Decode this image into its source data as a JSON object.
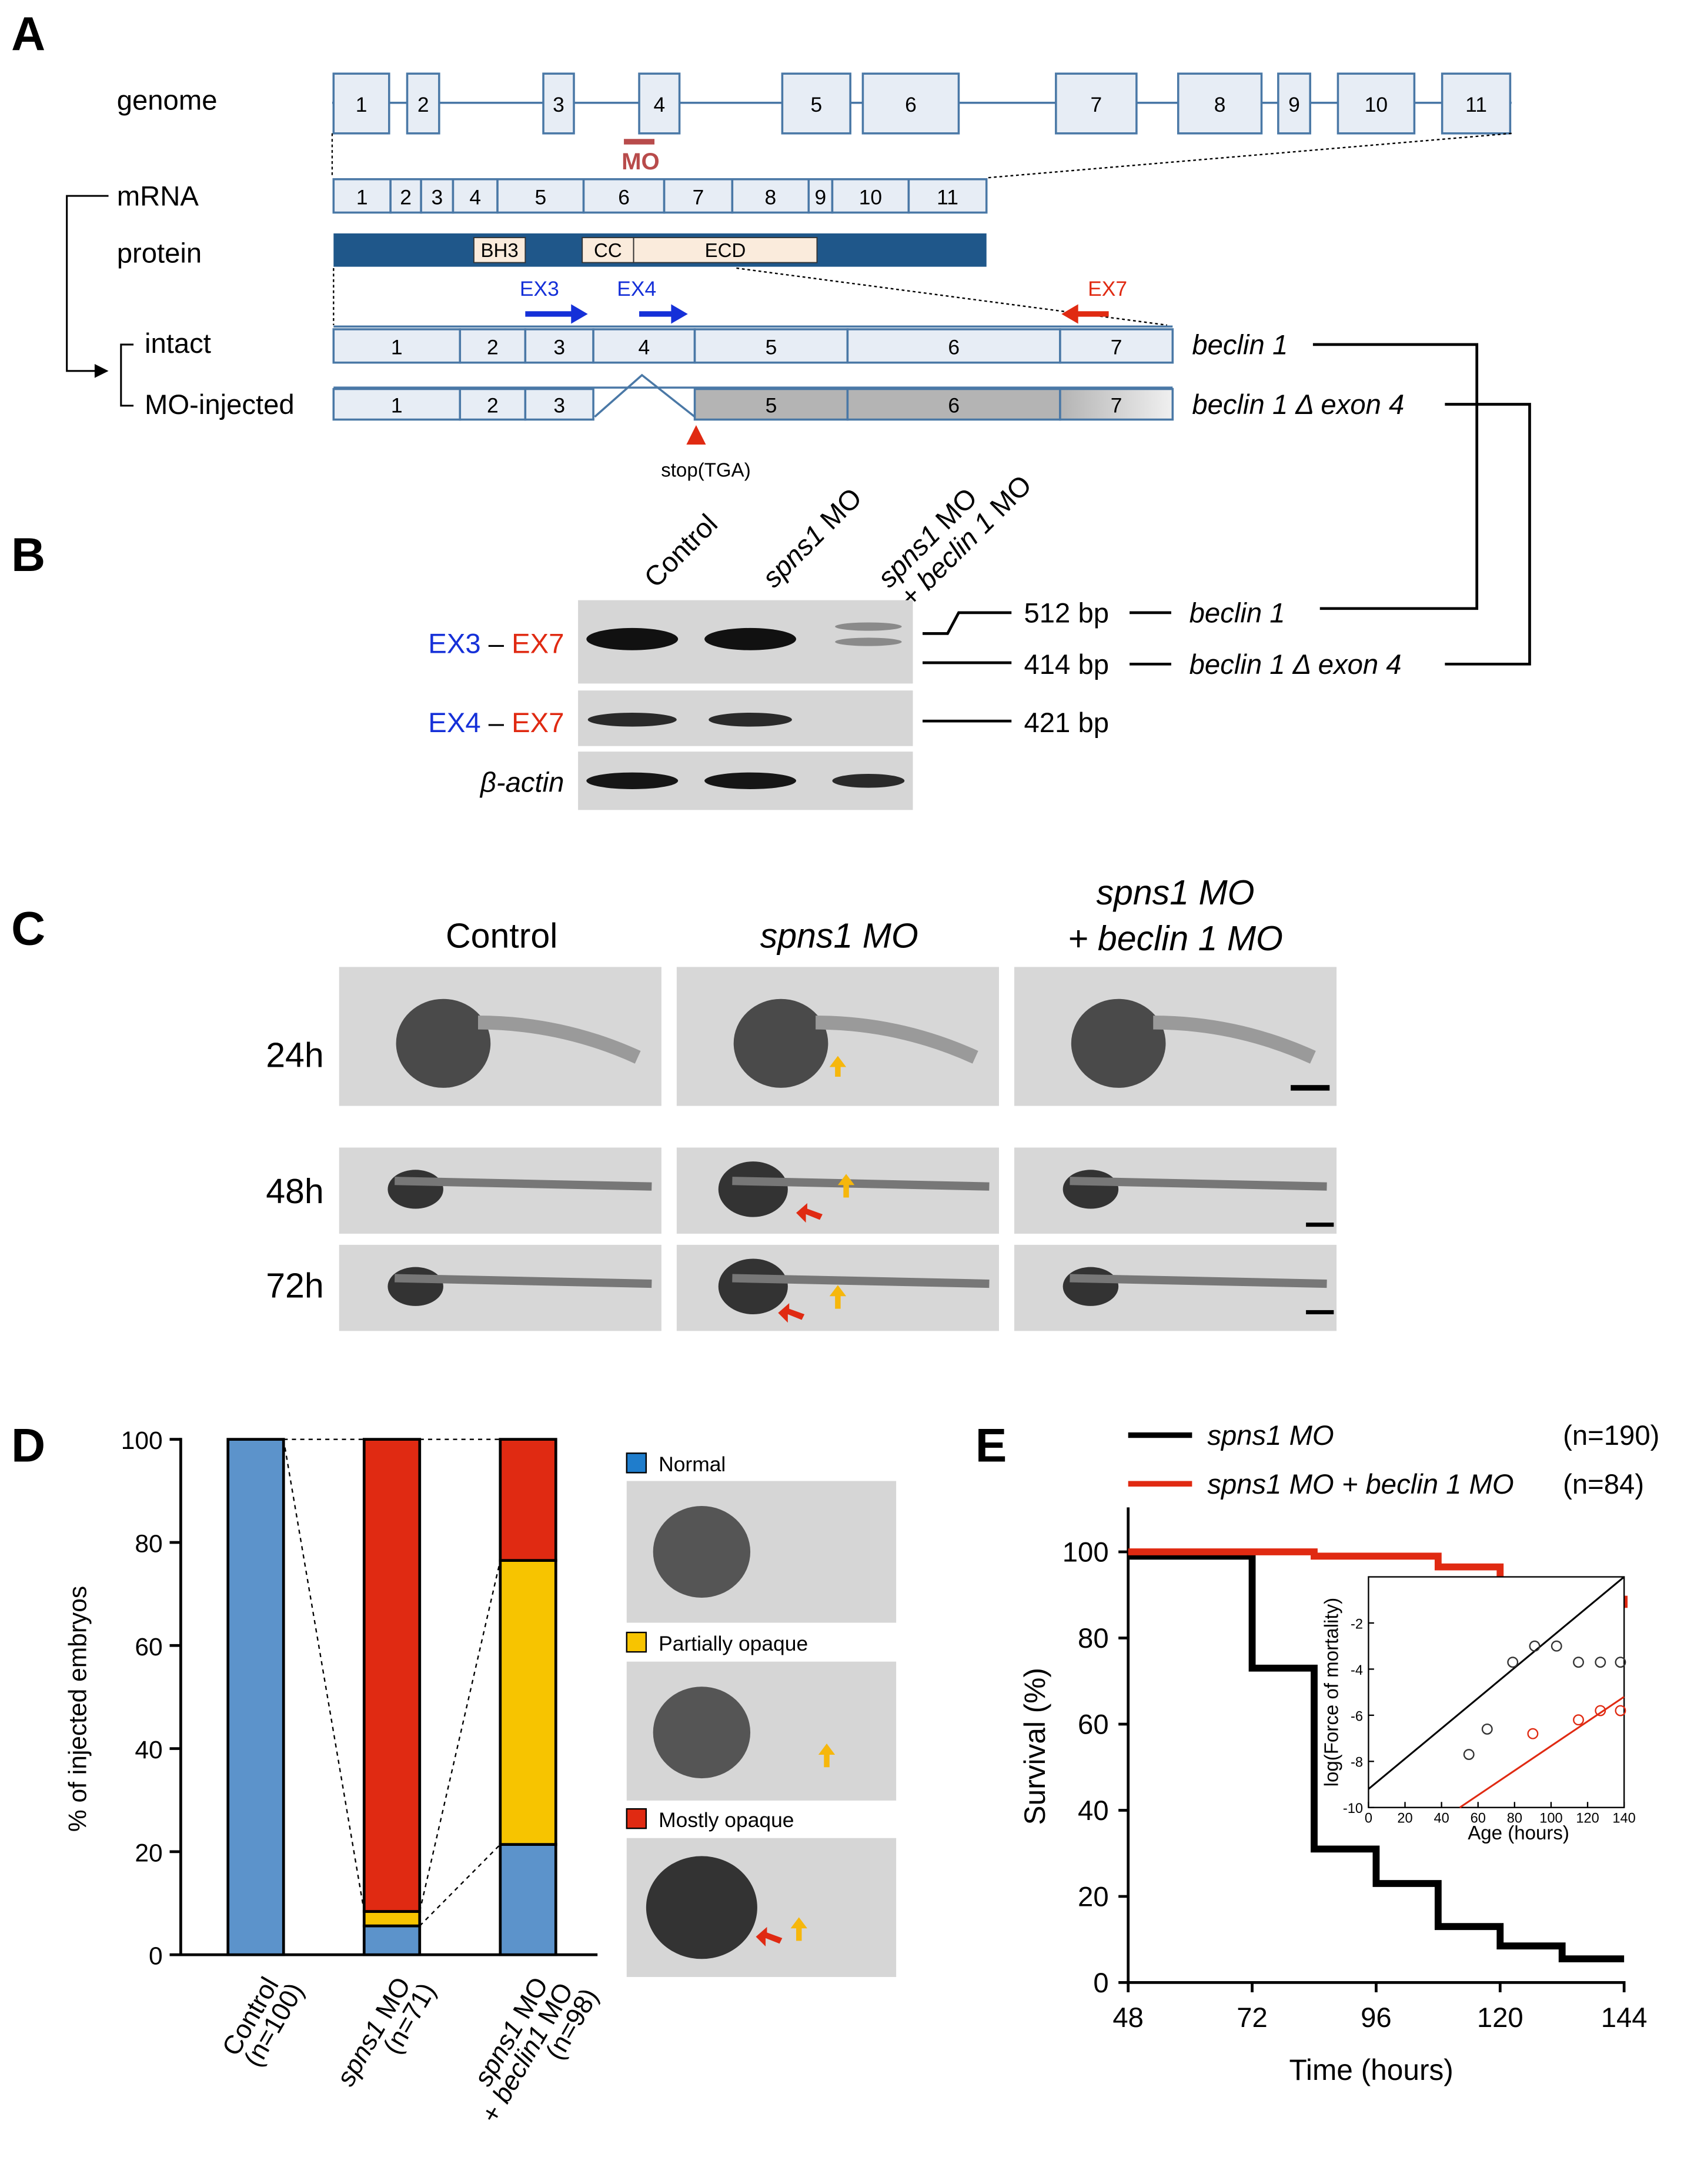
{
  "panels": {
    "A": "A",
    "B": "B",
    "C": "C",
    "D": "D",
    "E": "E"
  },
  "colors": {
    "box_fill": "#e7edf5",
    "box_stroke": "#4a78a6",
    "protein": "#1f578a",
    "domain": "#faebdc",
    "red": "#e02a12",
    "blue": "#1530d8",
    "mo": "#b84b4b",
    "yellow": "#f7c400",
    "bar_blue": "#5c93cb",
    "grey_exon": "#b4b4b4"
  },
  "panelA": {
    "genome_label": "genome",
    "genome_exons": [
      "1",
      "2",
      "3",
      "4",
      "5",
      "6",
      "7",
      "8",
      "9",
      "10",
      "11"
    ],
    "mo_label": "MO",
    "mrna_label": "mRNA",
    "mrna_exons": [
      "1",
      "2",
      "3",
      "4",
      "5",
      "6",
      "7",
      "8",
      "9",
      "10",
      "11"
    ],
    "protein_label": "protein",
    "domains": [
      "BH3",
      "CC",
      "ECD"
    ],
    "primers": [
      "EX3",
      "EX4",
      "EX7"
    ],
    "intact_label": "intact",
    "intact_exons": [
      "1",
      "2",
      "3",
      "4",
      "5",
      "6",
      "7"
    ],
    "mo_injected_label": "MO-injected",
    "mo_exons": [
      "1",
      "2",
      "3",
      "5",
      "6",
      "7"
    ],
    "stop_label": "stop(TGA)",
    "transcript_intact": "beclin 1",
    "transcript_delta": "beclin 1 Δ exon 4"
  },
  "panelB": {
    "lanes": [
      {
        "l1": "Control",
        "l2": ""
      },
      {
        "l1": "spns1 MO",
        "l2": ""
      },
      {
        "l1": "spns1 MO",
        "l2": "+ beclin 1 MO"
      }
    ],
    "row1_p1": "EX3",
    "row1_dash": " – ",
    "row1_p2": "EX7",
    "row2_p1": "EX4",
    "row2_dash": " – ",
    "row2_p2": "EX7",
    "row3": "β-actin",
    "bands": [
      "512 bp",
      "414 bp",
      "421 bp"
    ],
    "band_labels": [
      "beclin 1",
      "beclin 1 Δ exon 4"
    ]
  },
  "panelC": {
    "col1": "Control",
    "col2": "spns1 MO",
    "col3_l1": "spns1 MO",
    "col3_l2": "+ beclin 1 MO",
    "rows": [
      "24h",
      "48h",
      "72h"
    ]
  },
  "panelD": {
    "ylabel": "% of injected embryos",
    "yticks": [
      "0",
      "20",
      "40",
      "60",
      "80",
      "100"
    ],
    "categories": [
      {
        "l1": "Control",
        "l2": "(n=100)"
      },
      {
        "l1": "spns1 MO",
        "l2": "(n=71)"
      },
      {
        "l1": "spns1 MO",
        "l2": "+ beclin1 MO",
        "l3": "(n=98)"
      }
    ],
    "legend": [
      "Normal",
      "Partially opaque",
      "Mostly opaque"
    ]
  },
  "panelE": {
    "legend": [
      {
        "name": "spns1 MO",
        "n": "(n=190)"
      },
      {
        "name": "spns1 MO +  beclin 1 MO",
        "n": "(n=84)"
      }
    ],
    "ylabel": "Survival (%)",
    "xlabel": "Time (hours)",
    "yticks": [
      "0",
      "20",
      "40",
      "60",
      "80",
      "100"
    ],
    "xticks": [
      "48",
      "72",
      "96",
      "120",
      "144"
    ],
    "inset_ylabel": "log(Force of mortality)",
    "inset_xlabel": "Age (hours)",
    "inset_yticks": [
      "-10",
      "-8",
      "-6",
      "-4",
      "-2"
    ],
    "inset_xticks": [
      "0",
      "20",
      "40",
      "60",
      "80",
      "100",
      "120",
      "140"
    ]
  },
  "chart_data": [
    {
      "type": "bar",
      "stacked": true,
      "categories": [
        "Control (n=100)",
        "spns1 MO (n=71)",
        "spns1 MO + beclin1 MO (n=98)"
      ],
      "series": [
        {
          "name": "Normal",
          "values": [
            100,
            5.6,
            21.4
          ]
        },
        {
          "name": "Partially opaque",
          "values": [
            0,
            2.8,
            55.1
          ]
        },
        {
          "name": "Mostly opaque",
          "values": [
            0,
            91.6,
            23.5
          ]
        }
      ],
      "ylabel": "% of injected embryos",
      "ylim": [
        0,
        100
      ]
    },
    {
      "type": "line",
      "step": true,
      "series": [
        {
          "name": "spns1 MO",
          "x": [
            48,
            72,
            84,
            96,
            108,
            120,
            132,
            144
          ],
          "y": [
            99,
            73,
            31,
            23,
            13,
            8.5,
            5.5,
            5.5
          ]
        },
        {
          "name": "spns1 MO + beclin 1 MO",
          "x": [
            48,
            84,
            108,
            120,
            132,
            144
          ],
          "y": [
            100,
            99,
            96.5,
            93,
            89,
            87
          ]
        }
      ],
      "xlabel": "Time (hours)",
      "ylabel": "Survival (%)",
      "xlim": [
        48,
        144
      ],
      "ylim": [
        0,
        100
      ]
    },
    {
      "type": "scatter",
      "series": [
        {
          "name": "spns1 MO",
          "x": [
            55,
            65,
            79,
            91,
            103,
            115,
            127,
            138
          ],
          "y": [
            -7.7,
            -6.6,
            -3.7,
            -3.0,
            -3.0,
            -3.7,
            -3.7,
            -3.7
          ]
        },
        {
          "name": "spns1 MO + beclin 1 MO",
          "x": [
            90,
            115,
            127,
            138
          ],
          "y": [
            -6.8,
            -6.2,
            -5.8,
            -5.8
          ]
        }
      ],
      "xlabel": "Age (hours)",
      "ylabel": "log(Force of mortality)",
      "xlim": [
        0,
        140
      ],
      "ylim": [
        -10,
        0
      ]
    }
  ]
}
